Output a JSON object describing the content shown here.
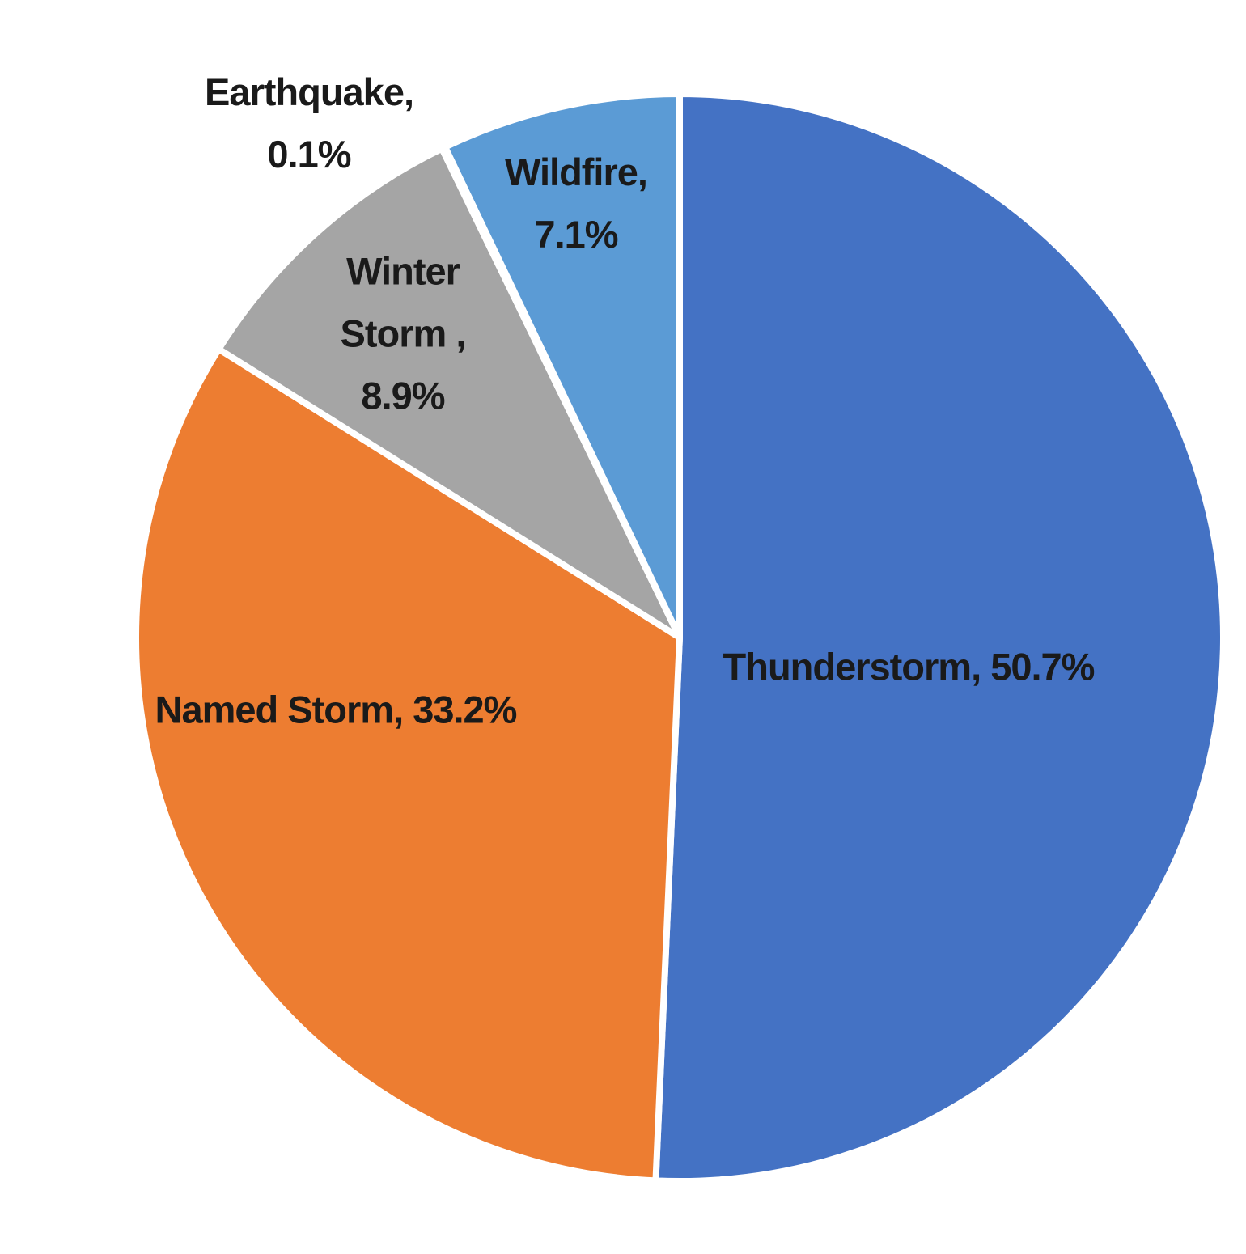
{
  "chart_data": {
    "type": "pie",
    "title": "",
    "categories": [
      "Thunderstorm",
      "Named Storm",
      "Winter Storm",
      "Earthquake",
      "Wildfire"
    ],
    "values": [
      50.7,
      33.2,
      8.9,
      0.1,
      7.1
    ],
    "unit": "percent",
    "colors": [
      "#4472C4",
      "#ED7D31",
      "#A5A5A5",
      "#FFC000",
      "#5B9BD5"
    ],
    "slice_border_color": "#FFFFFF",
    "start_angle_deg": 0,
    "direction": "clockwise",
    "legend_position": "none",
    "background_color": "#FFFFFF",
    "label_text_color": "#1A1A1A",
    "data_labels": [
      "Thunderstorm, 50.7%",
      "Named Storm, 33.2%",
      "Winter Storm , 8.9%",
      "Earthquake, 0.1%",
      "Wildfire, 7.1%"
    ]
  },
  "labels": {
    "thunderstorm": {
      "line1": "Thunderstorm, 50.7%"
    },
    "named_storm": {
      "line1": "Named Storm, 33.2%"
    },
    "winter_storm": {
      "line1": "Winter",
      "line2": "Storm ,",
      "line3": "8.9%"
    },
    "earthquake": {
      "line1": "Earthquake,",
      "line2": "0.1%"
    },
    "wildfire": {
      "line1": "Wildfire,",
      "line2": "7.1%"
    }
  }
}
